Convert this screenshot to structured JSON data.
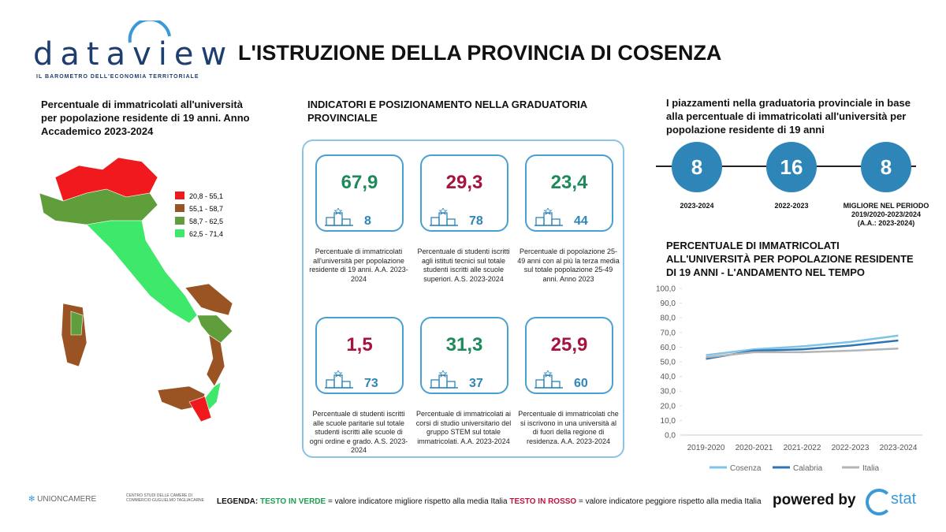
{
  "header": {
    "logo": "dataview",
    "tagline": "IL BAROMETRO DELL'ECONOMIA TERRITORIALE",
    "title": "L'ISTRUZIONE DELLA PROVINCIA DI COSENZA"
  },
  "map": {
    "title": "Percentuale di immatricolati all'università per popolazione residente di 19 anni. Anno Accademico 2023-2024",
    "legend": [
      {
        "label": "20,8 - 55,1",
        "color": "#f0191e"
      },
      {
        "label": "55,1 - 58,7",
        "color": "#9a5423"
      },
      {
        "label": "58,7 - 62,5",
        "color": "#5f9e3a"
      },
      {
        "label": "62,5 - 71,4",
        "color": "#3ee86a"
      }
    ]
  },
  "indicators": {
    "title": "INDICATORI E POSIZIONAMENTO NELLA GRADUATORIA PROVINCIALE",
    "cards": [
      {
        "value": "67,9",
        "color": "#1e8a5a",
        "rank": 8,
        "description": "Percentuale di immatricolati all'università per popolazione residente di 19 anni. A.A. 2023-2024"
      },
      {
        "value": "29,3",
        "color": "#a8123e",
        "rank": 78,
        "description": "Percentuale di studenti iscritti agli istituti tecnici sul totale studenti iscritti alle scuole superiori. A.S. 2023-2024"
      },
      {
        "value": "23,4",
        "color": "#1e8a5a",
        "rank": 44,
        "description": "Percentuale di popolazione 25-49 anni con al più la terza media sul totale popolazione 25-49 anni. Anno 2023"
      },
      {
        "value": "1,5",
        "color": "#a8123e",
        "rank": 73,
        "description": "Percentuale di studenti iscritti alle scuole paritarie sul totale studenti iscritti alle scuole di ogni ordine e grado. A.S. 2023-2024"
      },
      {
        "value": "31,3",
        "color": "#1e8a5a",
        "rank": 37,
        "description": "Percentuale di immatricolati ai corsi di studio universitario del gruppo STEM sul totale immatricolati. A.A. 2023-2024"
      },
      {
        "value": "25,9",
        "color": "#a8123e",
        "rank": 60,
        "description": "Percentuale di immatricolati che si iscrivono in una università al di fuori della regione di residenza. A.A. 2023-2024"
      }
    ]
  },
  "placements": {
    "title": "I piazzamenti nella graduatoria provinciale in base alla percentuale di immatricolati all'università per popolazione residente di 19 anni",
    "items": [
      {
        "rank": 8,
        "label": "2023-2024"
      },
      {
        "rank": 16,
        "label": "2022-2023"
      },
      {
        "rank": 8,
        "label": "MIGLIORE NEL PERIODO 2019/2020-2023/2024 (A.A.: 2023-2024)"
      }
    ]
  },
  "chart_data": {
    "type": "line",
    "title": "PERCENTUALE DI IMMATRICOLATI ALL'UNIVERSITÀ PER POPOLAZIONE RESIDENTE DI 19 ANNI - L'ANDAMENTO NEL TEMPO",
    "categories": [
      "2019-2020",
      "2020-2021",
      "2021-2022",
      "2022-2023",
      "2023-2024"
    ],
    "series": [
      {
        "name": "Cosenza",
        "color": "#7ec3e8",
        "values": [
          54.5,
          58.5,
          60.5,
          63.5,
          67.9
        ]
      },
      {
        "name": "Calabria",
        "color": "#2e75b6",
        "values": [
          52,
          57.5,
          58.5,
          61,
          64.5
        ]
      },
      {
        "name": "Italia",
        "color": "#b4b4b4",
        "values": [
          53,
          56.5,
          56.5,
          57.5,
          59
        ]
      }
    ],
    "ylim": [
      0,
      100
    ],
    "yticks": [
      {
        "value": 0,
        "label": "0,0"
      },
      {
        "value": 10,
        "label": "10,0"
      },
      {
        "value": 20,
        "label": "20,0"
      },
      {
        "value": 30,
        "label": "30,0"
      },
      {
        "value": 40,
        "label": "40,0"
      },
      {
        "value": 50,
        "label": "50,0"
      },
      {
        "value": 60,
        "label": "60,0"
      },
      {
        "value": 70,
        "label": "70,0"
      },
      {
        "value": 80,
        "label": "80,0"
      },
      {
        "value": 90,
        "label": "90,0"
      },
      {
        "value": 100,
        "label": "100,0"
      }
    ],
    "legend": "bottom"
  },
  "footer": {
    "unioncamere": "UNIONCAMERE",
    "tagliacarne": "CENTRO STUDI DELLE CAMERE DI COMMERCIO GUGLIELMO TAGLIACARNE",
    "legend_label": "LEGENDA:",
    "green_text": "TESTO IN VERDE",
    "green_desc": "= valore indicatore migliore rispetto alla media Italia",
    "red_text": "TESTO IN ROSSO",
    "red_desc": "= valore indicatore peggiore rispetto alla media Italia",
    "powered": "powered by",
    "brand": "stat"
  }
}
